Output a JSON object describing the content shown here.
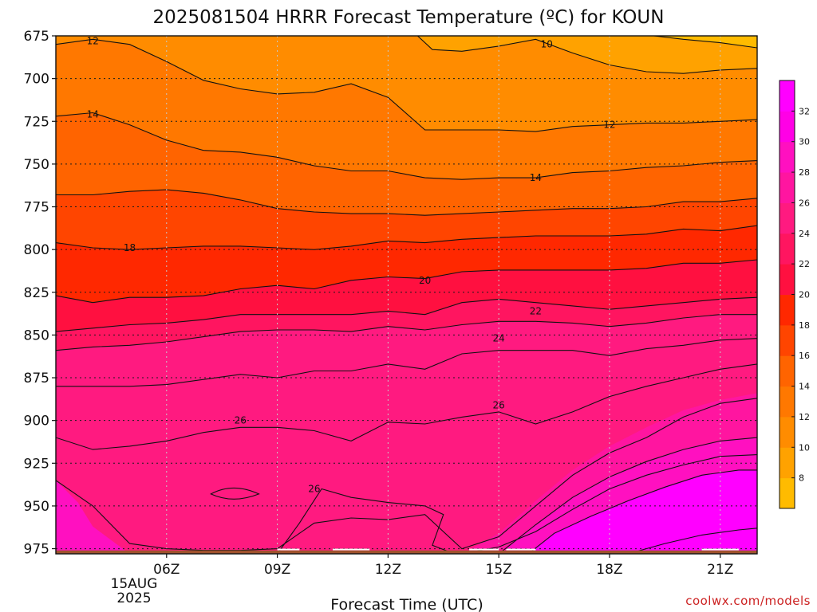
{
  "chart_data": {
    "type": "contour",
    "title": "2025081504 HRRR Forecast Temperature (ºC) for KOUN",
    "xlabel": "Forecast Time (UTC)",
    "ylabel": "",
    "credit": "coolwx.com/models",
    "x_ticks": [
      {
        "label": "06Z",
        "hour": 6
      },
      {
        "label": "09Z",
        "hour": 9
      },
      {
        "label": "12Z",
        "hour": 12
      },
      {
        "label": "15Z",
        "hour": 15
      },
      {
        "label": "18Z",
        "hour": 18
      },
      {
        "label": "21Z",
        "hour": 21
      }
    ],
    "date_label": [
      "15AUG",
      "2025"
    ],
    "xlim": [
      3,
      22
    ],
    "y_ticks": [
      675,
      700,
      725,
      750,
      775,
      800,
      825,
      850,
      875,
      900,
      925,
      950,
      975
    ],
    "ylim": [
      675,
      978
    ],
    "y_scale": "linear-pressure-reversed",
    "grid": true,
    "colorbar": {
      "ticks": [
        8,
        10,
        12,
        14,
        16,
        18,
        20,
        22,
        24,
        26,
        28,
        30,
        32
      ],
      "colors": [
        "#ffbb00",
        "#ffa200",
        "#ff8c00",
        "#ff7800",
        "#ff6400",
        "#ff4500",
        "#ff2800",
        "#ff1040",
        "#ff1560",
        "#ff1a80",
        "#ff15a0",
        "#ff10c0",
        "#ff00e6",
        "#ff00ff"
      ]
    },
    "ground_color": "#a0522d",
    "contour_interval": 2,
    "series": [
      {
        "level": 10,
        "x": [
          8.4,
          9,
          10,
          11,
          12,
          13,
          14,
          15,
          16,
          17,
          18,
          19,
          20,
          21,
          22
        ],
        "y": [
          675,
          675,
          675,
          675,
          675,
          675,
          675,
          675,
          675,
          675,
          675,
          675,
          675,
          675,
          675
        ]
      },
      {
        "level": 12,
        "hour_points": [
          [
            3,
            680
          ],
          [
            4,
            677
          ],
          [
            5,
            680
          ],
          [
            6,
            690
          ],
          [
            7,
            701
          ],
          [
            8,
            706
          ],
          [
            9,
            709
          ],
          [
            10,
            708
          ],
          [
            11,
            703
          ],
          [
            12,
            711
          ],
          [
            13,
            730
          ],
          [
            14,
            730
          ],
          [
            15,
            730
          ],
          [
            16,
            731
          ],
          [
            17,
            728
          ],
          [
            18,
            727
          ],
          [
            19,
            726
          ],
          [
            20,
            726
          ],
          [
            21,
            725
          ],
          [
            22,
            724
          ]
        ]
      },
      {
        "level": 14,
        "hour_points": [
          [
            3,
            722
          ],
          [
            4,
            720
          ],
          [
            5,
            727
          ],
          [
            6,
            736
          ],
          [
            7,
            742
          ],
          [
            8,
            743
          ],
          [
            9,
            746
          ],
          [
            10,
            751
          ],
          [
            11,
            754
          ],
          [
            12,
            754
          ],
          [
            13,
            758
          ],
          [
            14,
            759
          ],
          [
            15,
            758
          ],
          [
            16,
            758
          ],
          [
            17,
            755
          ],
          [
            18,
            754
          ],
          [
            19,
            752
          ],
          [
            20,
            751
          ],
          [
            21,
            749
          ],
          [
            22,
            748
          ]
        ]
      },
      {
        "level": 16,
        "hour_points": [
          [
            3,
            768
          ],
          [
            4,
            768
          ],
          [
            5,
            766
          ],
          [
            6,
            765
          ],
          [
            7,
            767
          ],
          [
            8,
            771
          ],
          [
            9,
            776
          ],
          [
            10,
            778
          ],
          [
            11,
            779
          ],
          [
            12,
            779
          ],
          [
            13,
            780
          ],
          [
            14,
            779
          ],
          [
            15,
            778
          ],
          [
            16,
            777
          ],
          [
            17,
            776
          ],
          [
            18,
            776
          ],
          [
            19,
            775
          ],
          [
            20,
            772
          ],
          [
            21,
            772
          ],
          [
            22,
            770
          ]
        ]
      },
      {
        "level": 18,
        "hour_points": [
          [
            3,
            796
          ],
          [
            4,
            799
          ],
          [
            5,
            800
          ],
          [
            6,
            799
          ],
          [
            7,
            798
          ],
          [
            8,
            798
          ],
          [
            9,
            799
          ],
          [
            10,
            800
          ],
          [
            11,
            798
          ],
          [
            12,
            795
          ],
          [
            13,
            796
          ],
          [
            14,
            794
          ],
          [
            15,
            793
          ],
          [
            16,
            792
          ],
          [
            17,
            792
          ],
          [
            18,
            792
          ],
          [
            19,
            791
          ],
          [
            20,
            788
          ],
          [
            21,
            789
          ],
          [
            22,
            786
          ]
        ]
      },
      {
        "level": 20,
        "hour_points": [
          [
            3,
            827
          ],
          [
            4,
            831
          ],
          [
            5,
            828
          ],
          [
            6,
            828
          ],
          [
            7,
            827
          ],
          [
            8,
            823
          ],
          [
            9,
            821
          ],
          [
            10,
            823
          ],
          [
            11,
            818
          ],
          [
            12,
            816
          ],
          [
            13,
            817
          ],
          [
            14,
            813
          ],
          [
            15,
            812
          ],
          [
            16,
            812
          ],
          [
            17,
            812
          ],
          [
            18,
            812
          ],
          [
            19,
            811
          ],
          [
            20,
            808
          ],
          [
            21,
            808
          ],
          [
            22,
            806
          ]
        ]
      },
      {
        "level": 22,
        "hour_points": [
          [
            3,
            848
          ],
          [
            4,
            846
          ],
          [
            5,
            844
          ],
          [
            6,
            843
          ],
          [
            7,
            841
          ],
          [
            8,
            838
          ],
          [
            9,
            838
          ],
          [
            10,
            838
          ],
          [
            11,
            838
          ],
          [
            12,
            836
          ],
          [
            13,
            838
          ],
          [
            14,
            831
          ],
          [
            15,
            829
          ],
          [
            16,
            831
          ],
          [
            17,
            833
          ],
          [
            18,
            835
          ],
          [
            19,
            833
          ],
          [
            20,
            831
          ],
          [
            21,
            829
          ],
          [
            22,
            828
          ]
        ]
      },
      {
        "level": 24,
        "hour_points": [
          [
            3,
            859
          ],
          [
            4,
            857
          ],
          [
            5,
            856
          ],
          [
            6,
            854
          ],
          [
            7,
            851
          ],
          [
            8,
            848
          ],
          [
            9,
            847
          ],
          [
            10,
            847
          ],
          [
            11,
            848
          ],
          [
            12,
            845
          ],
          [
            13,
            847
          ],
          [
            14,
            844
          ],
          [
            15,
            842
          ],
          [
            16,
            842
          ],
          [
            17,
            843
          ],
          [
            18,
            845
          ],
          [
            19,
            843
          ],
          [
            20,
            840
          ],
          [
            21,
            838
          ],
          [
            22,
            838
          ]
        ]
      },
      {
        "level": 26,
        "hour_points": [
          [
            3,
            880
          ],
          [
            4,
            880
          ],
          [
            5,
            880
          ],
          [
            6,
            879
          ],
          [
            7,
            876
          ],
          [
            8,
            873
          ],
          [
            9,
            875
          ],
          [
            10,
            871
          ],
          [
            11,
            871
          ],
          [
            12,
            867
          ],
          [
            13,
            870
          ],
          [
            14,
            861
          ],
          [
            15,
            859
          ],
          [
            16,
            859
          ],
          [
            17,
            859
          ],
          [
            18,
            862
          ],
          [
            19,
            858
          ],
          [
            20,
            856
          ],
          [
            21,
            853
          ],
          [
            22,
            852
          ]
        ]
      },
      {
        "level": 28,
        "hour_points": [
          [
            3,
            910
          ],
          [
            4,
            917
          ],
          [
            5,
            915
          ],
          [
            6,
            912
          ],
          [
            7,
            907
          ],
          [
            8,
            904
          ],
          [
            9,
            904
          ],
          [
            10,
            906
          ],
          [
            11,
            912
          ],
          [
            12,
            901
          ],
          [
            13,
            902
          ],
          [
            14,
            898
          ],
          [
            15,
            895
          ],
          [
            16,
            902
          ],
          [
            17,
            895
          ],
          [
            18,
            886
          ],
          [
            19,
            880
          ],
          [
            20,
            875
          ],
          [
            21,
            870
          ],
          [
            22,
            867
          ]
        ]
      },
      {
        "level": 30,
        "hour_points": [
          [
            3,
            935
          ],
          [
            4,
            950
          ],
          [
            5,
            972
          ],
          [
            6,
            975
          ],
          [
            7,
            976
          ],
          [
            8,
            976
          ],
          [
            9,
            975
          ],
          [
            10,
            960
          ],
          [
            11,
            957
          ],
          [
            12,
            958
          ],
          [
            13,
            955
          ],
          [
            14,
            975
          ],
          [
            15,
            968
          ],
          [
            16,
            950
          ],
          [
            17,
            932
          ],
          [
            18,
            919
          ],
          [
            19,
            910
          ],
          [
            20,
            898
          ],
          [
            21,
            890
          ],
          [
            22,
            887
          ]
        ]
      },
      {
        "level": 32,
        "hour_points": [
          [
            14,
            978
          ],
          [
            15,
            974
          ],
          [
            16,
            965
          ],
          [
            17,
            952
          ],
          [
            18,
            940
          ],
          [
            19,
            932
          ],
          [
            20,
            926
          ],
          [
            21,
            921
          ],
          [
            22,
            920
          ]
        ]
      }
    ],
    "labels": [
      {
        "text": "12",
        "hour": 4.0,
        "p": 678
      },
      {
        "text": "10",
        "hour": 16.3,
        "p": 680
      },
      {
        "text": "14",
        "hour": 4.0,
        "p": 721
      },
      {
        "text": "12",
        "hour": 18.0,
        "p": 727
      },
      {
        "text": "14",
        "hour": 16.0,
        "p": 758
      },
      {
        "text": "18",
        "hour": 5.0,
        "p": 799
      },
      {
        "text": "20",
        "hour": 13.0,
        "p": 818
      },
      {
        "text": "22",
        "hour": 16.0,
        "p": 836
      },
      {
        "text": "24",
        "hour": 15.0,
        "p": 852
      },
      {
        "text": "26",
        "hour": 15.0,
        "p": 891
      },
      {
        "text": "26",
        "hour": 8.0,
        "p": 900
      },
      {
        "text": "26",
        "hour": 10.0,
        "p": 940
      }
    ]
  }
}
